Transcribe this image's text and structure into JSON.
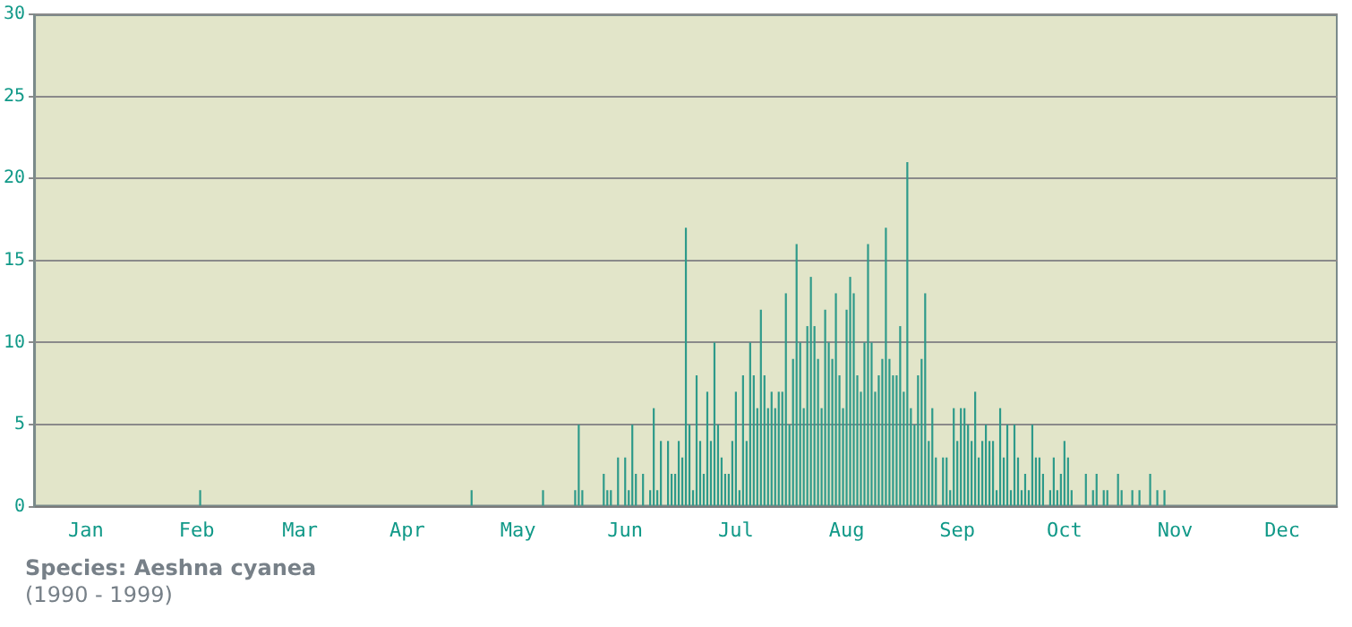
{
  "chart_data": {
    "type": "bar",
    "categories": [
      null,
      null,
      null,
      null,
      null,
      null,
      null,
      null,
      null,
      null,
      null,
      null,
      null,
      null,
      "Jan",
      null,
      null,
      null,
      null,
      null,
      null,
      null,
      null,
      null,
      null,
      null,
      null,
      null,
      null,
      null,
      null,
      null,
      null,
      null,
      null,
      null,
      null,
      null,
      null,
      null,
      null,
      null,
      null,
      null,
      null,
      "Feb",
      null,
      null,
      null,
      null,
      null,
      null,
      null,
      null,
      null,
      null,
      null,
      null,
      null,
      null,
      null,
      null,
      null,
      null,
      null,
      null,
      null,
      null,
      null,
      null,
      null,
      null,
      null,
      null,
      "Mar",
      null,
      null,
      null,
      null,
      null,
      null,
      null,
      null,
      null,
      null,
      null,
      null,
      null,
      null,
      null,
      null,
      null,
      null,
      null,
      null,
      null,
      null,
      null,
      null,
      null,
      null,
      null,
      null,
      null,
      "Apr",
      null,
      null,
      null,
      null,
      null,
      null,
      null,
      null,
      null,
      null,
      null,
      null,
      null,
      null,
      null,
      null,
      null,
      null,
      null,
      null,
      null,
      null,
      null,
      null,
      null,
      null,
      null,
      null,
      null,
      null,
      "May",
      null,
      null,
      null,
      null,
      null,
      null,
      null,
      null,
      null,
      null,
      null,
      null,
      null,
      null,
      null,
      null,
      null,
      null,
      null,
      null,
      null,
      null,
      null,
      null,
      null,
      null,
      null,
      null,
      null,
      "Jun",
      null,
      null,
      null,
      null,
      null,
      null,
      null,
      null,
      null,
      null,
      null,
      null,
      null,
      null,
      null,
      null,
      null,
      null,
      null,
      null,
      null,
      null,
      null,
      null,
      null,
      null,
      null,
      null,
      null,
      null,
      "Jul",
      null,
      null,
      null,
      null,
      null,
      null,
      null,
      null,
      null,
      null,
      null,
      null,
      null,
      null,
      null,
      null,
      null,
      null,
      null,
      null,
      null,
      null,
      null,
      null,
      null,
      null,
      null,
      null,
      null,
      null,
      "Aug",
      null,
      null,
      null,
      null,
      null,
      null,
      null,
      null,
      null,
      null,
      null,
      null,
      null,
      null,
      null,
      null,
      null,
      null,
      null,
      null,
      null,
      null,
      null,
      null,
      null,
      null,
      null,
      null,
      null,
      null,
      "Sep",
      null,
      null,
      null,
      null,
      null,
      null,
      null,
      null,
      null,
      null,
      null,
      null,
      null,
      null,
      null,
      null,
      null,
      null,
      null,
      null,
      null,
      null,
      null,
      null,
      null,
      null,
      null,
      null,
      null,
      "Oct",
      null,
      null,
      null,
      null,
      null,
      null,
      null,
      null,
      null,
      null,
      null,
      null,
      null,
      null,
      null,
      null,
      null,
      null,
      null,
      null,
      null,
      null,
      null,
      null,
      null,
      null,
      null,
      null,
      null,
      null,
      "Nov",
      null,
      null,
      null,
      null,
      null,
      null,
      null,
      null,
      null,
      null,
      null,
      null,
      null,
      null,
      null,
      null,
      null,
      null,
      null,
      null,
      null,
      null,
      null,
      null,
      null,
      null,
      null,
      null,
      null,
      "Dec",
      null,
      null,
      null,
      null,
      null,
      null,
      null,
      null,
      null,
      null,
      null,
      null,
      null,
      null,
      null
    ],
    "values": [
      0,
      0,
      0,
      0,
      0,
      0,
      0,
      0,
      0,
      0,
      0,
      0,
      0,
      0,
      0,
      0,
      0,
      0,
      0,
      0,
      0,
      0,
      0,
      0,
      0,
      0,
      0,
      0,
      0,
      0,
      0,
      0,
      0,
      0,
      0,
      0,
      0,
      0,
      0,
      0,
      0,
      0,
      0,
      0,
      0,
      0,
      1,
      0,
      0,
      0,
      0,
      0,
      0,
      0,
      0,
      0,
      0,
      0,
      0,
      0,
      0,
      0,
      0,
      0,
      0,
      0,
      0,
      0,
      0,
      0,
      0,
      0,
      0,
      0,
      0,
      0,
      0,
      0,
      0,
      0,
      0,
      0,
      0,
      0,
      0,
      0,
      0,
      0,
      0,
      0,
      0,
      0,
      0,
      0,
      0,
      0,
      0,
      0,
      0,
      0,
      0,
      0,
      0,
      0,
      0,
      0,
      0,
      0,
      0,
      0,
      0,
      0,
      0,
      0,
      0,
      0,
      0,
      0,
      0,
      0,
      0,
      0,
      1,
      0,
      0,
      0,
      0,
      0,
      0,
      0,
      0,
      0,
      0,
      0,
      0,
      0,
      0,
      0,
      0,
      0,
      0,
      0,
      1,
      0,
      0,
      0,
      0,
      0,
      0,
      0,
      0,
      1,
      5,
      1,
      0,
      0,
      0,
      0,
      0,
      2,
      1,
      1,
      0,
      3,
      0,
      3,
      1,
      5,
      2,
      0,
      2,
      0,
      1,
      6,
      1,
      4,
      0,
      4,
      2,
      2,
      4,
      3,
      17,
      5,
      1,
      8,
      4,
      2,
      7,
      4,
      10,
      5,
      3,
      2,
      2,
      4,
      7,
      1,
      8,
      4,
      10,
      8,
      6,
      12,
      8,
      6,
      7,
      6,
      7,
      7,
      13,
      5,
      9,
      16,
      10,
      6,
      11,
      14,
      11,
      9,
      6,
      12,
      10,
      9,
      13,
      8,
      6,
      12,
      14,
      13,
      8,
      7,
      10,
      16,
      10,
      7,
      8,
      9,
      17,
      9,
      8,
      8,
      11,
      7,
      21,
      6,
      5,
      8,
      9,
      13,
      4,
      6,
      3,
      0,
      3,
      3,
      1,
      6,
      4,
      6,
      6,
      5,
      4,
      7,
      3,
      4,
      5,
      4,
      4,
      1,
      6,
      3,
      5,
      1,
      5,
      3,
      1,
      2,
      1,
      5,
      3,
      3,
      2,
      0,
      1,
      3,
      1,
      2,
      4,
      3,
      1,
      0,
      0,
      0,
      2,
      0,
      1,
      2,
      0,
      1,
      1,
      0,
      0,
      2,
      1,
      0,
      0,
      1,
      0,
      1,
      0,
      0,
      2,
      0,
      1,
      0,
      1,
      0,
      0,
      0,
      0,
      0,
      0,
      0,
      0,
      0,
      0,
      0,
      0,
      0,
      0,
      0,
      0,
      0,
      0,
      0,
      0,
      0,
      0,
      0,
      0,
      0,
      0,
      0,
      0,
      0,
      0,
      0,
      0,
      0,
      0,
      0,
      0,
      0,
      0,
      0,
      0,
      0,
      0,
      0,
      0,
      0,
      0,
      0,
      0
    ],
    "color": "#2e9a8a",
    "ylim": [
      0,
      30
    ],
    "yticks": [
      0,
      5,
      10,
      15,
      20,
      25,
      30
    ],
    "grid": "y",
    "annotations": [
      "Species: Aeshna cyanea",
      "(1990 - 1999)"
    ]
  }
}
